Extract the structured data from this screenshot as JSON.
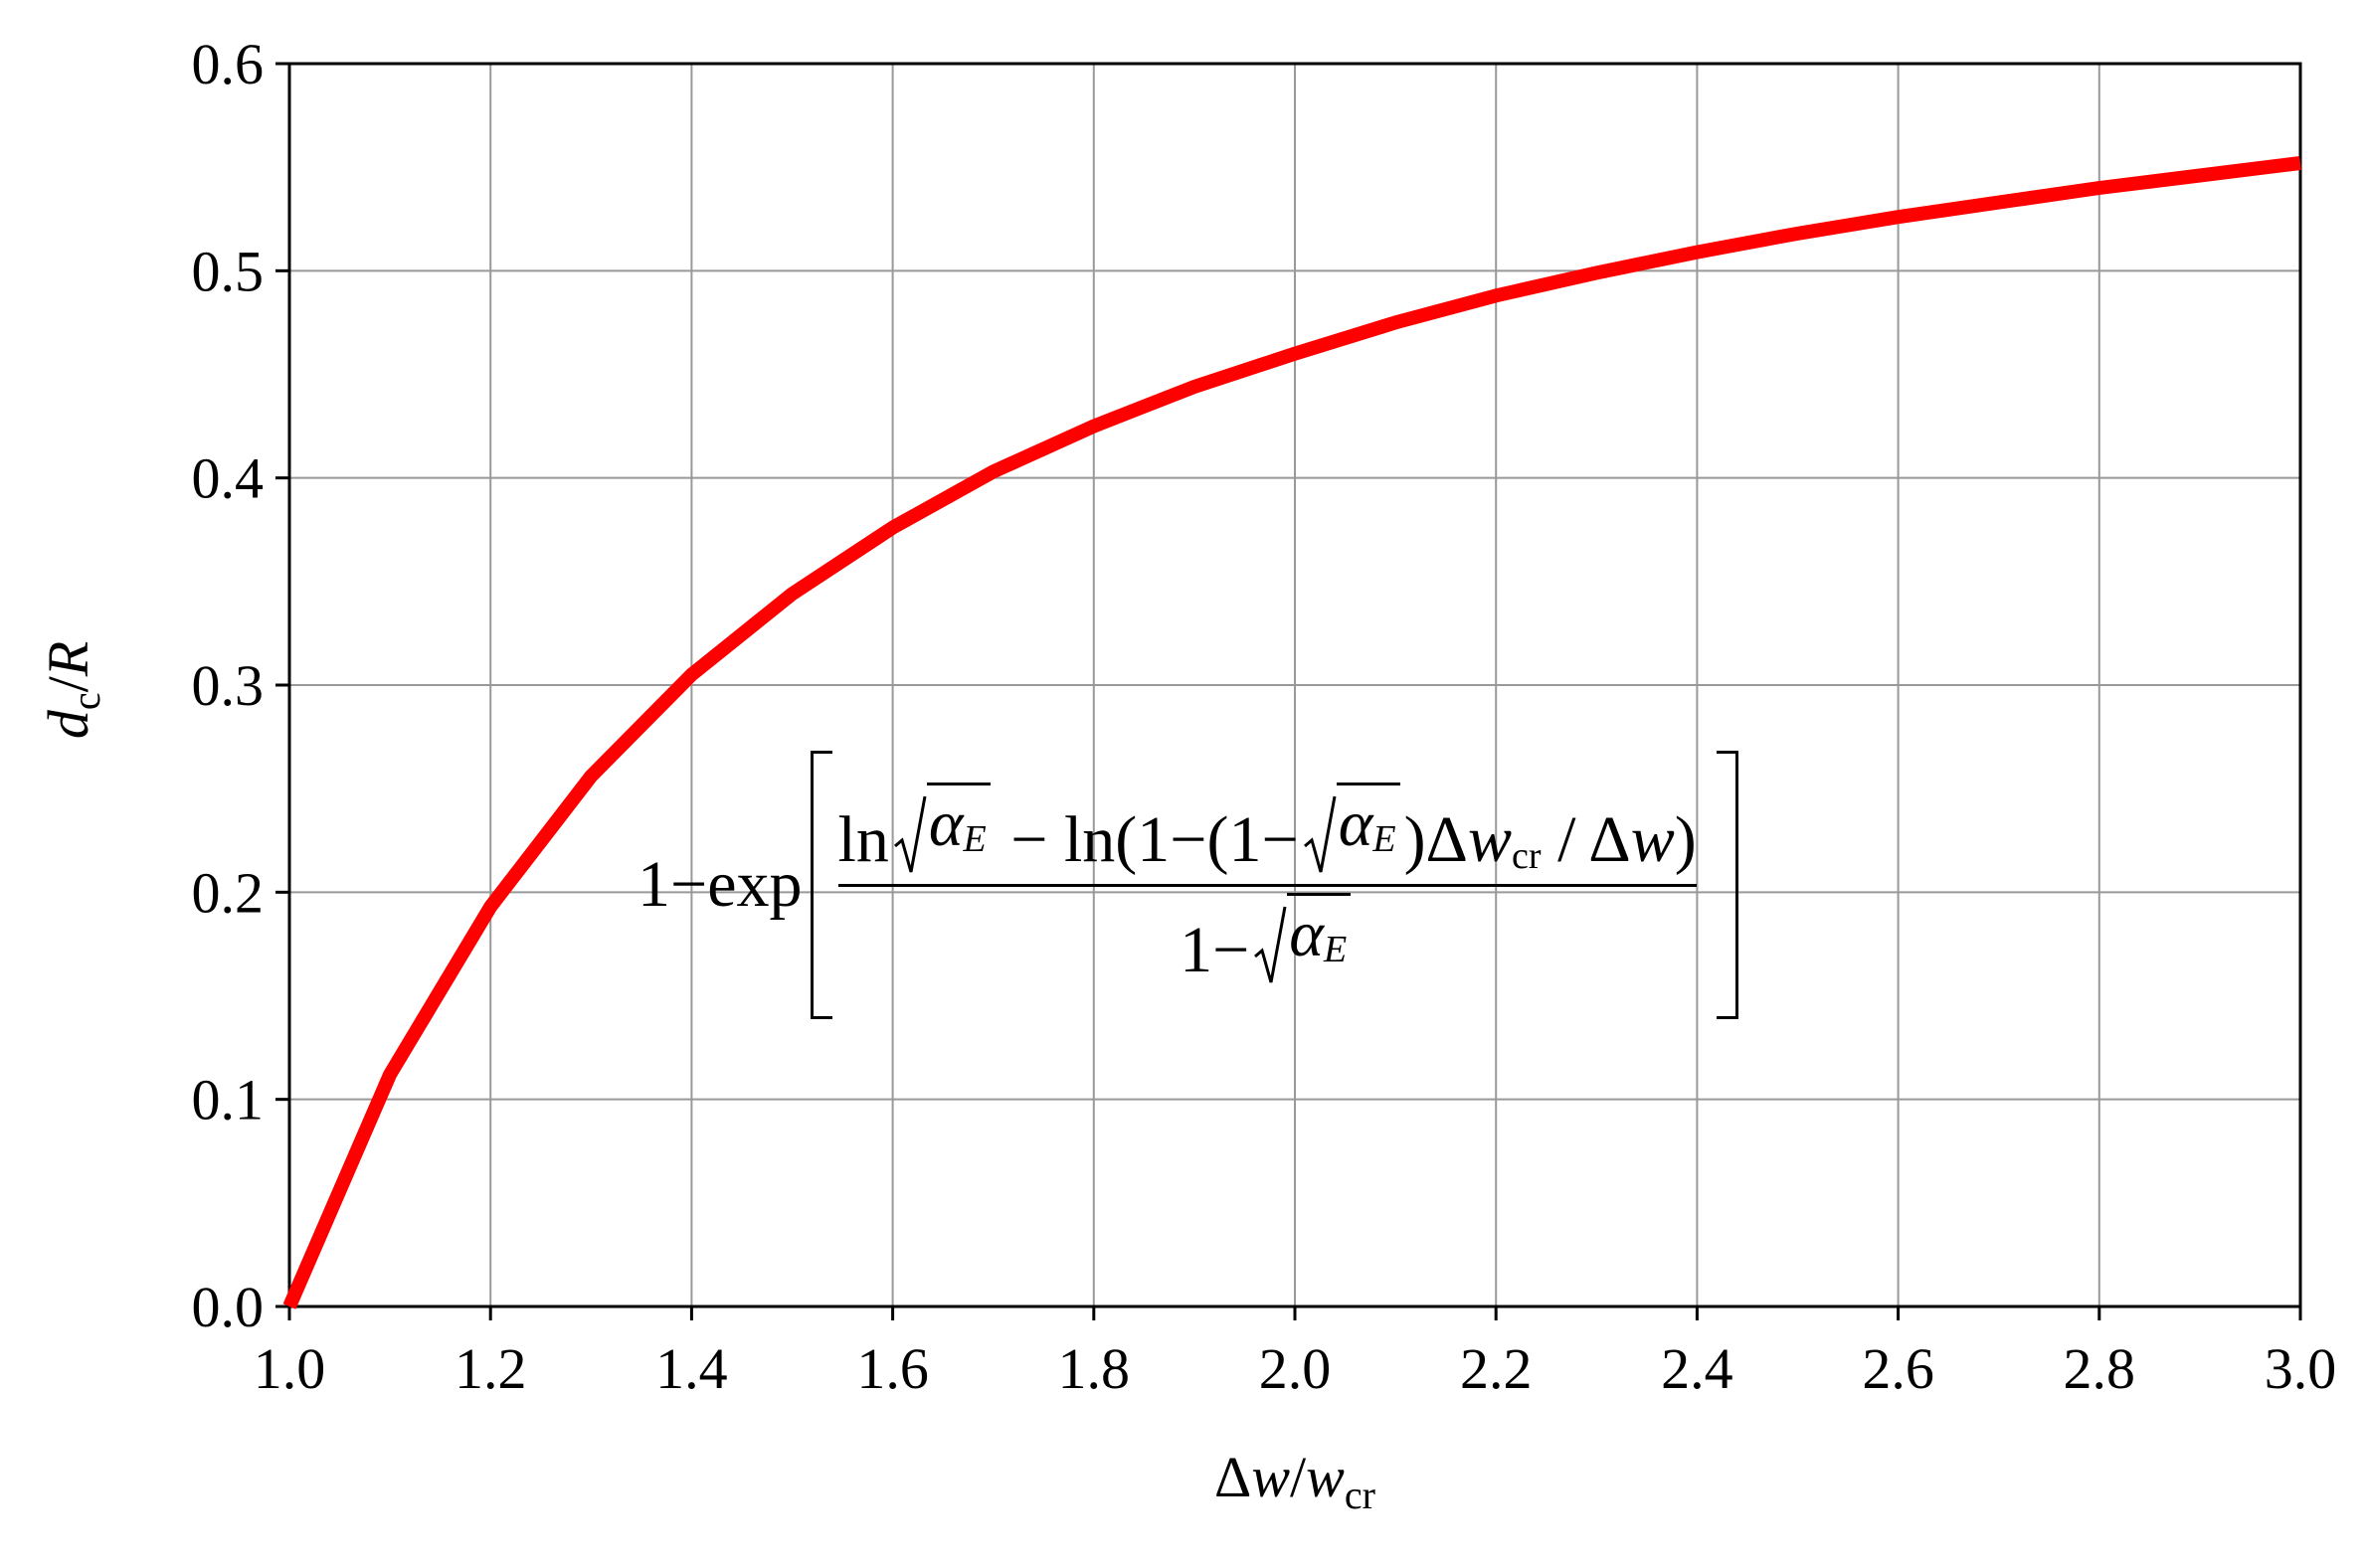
{
  "chart_data": {
    "type": "line",
    "x_label": [
      "Δ",
      "w",
      "/",
      "w",
      "cr"
    ],
    "y_label": [
      "d",
      "c",
      "/",
      "R"
    ],
    "annotation": {
      "prefix": "1−exp",
      "numerator": [
        "ln",
        "α",
        "E",
        " − ln",
        "(1−(1−",
        "α",
        "E",
        ")Δ",
        "w",
        "cr",
        " / Δ",
        "w",
        ")"
      ],
      "denominator": [
        "1−",
        "α",
        "E"
      ]
    },
    "x": [
      1.0,
      1.1,
      1.2,
      1.3,
      1.4,
      1.5,
      1.6,
      1.7,
      1.8,
      1.9,
      2.0,
      2.1,
      2.2,
      2.3,
      2.4,
      2.5,
      2.6,
      2.7,
      2.8,
      2.9,
      3.0
    ],
    "series": [
      {
        "color": "#ff0000",
        "values": [
          0.0,
          0.112,
          0.193,
          0.256,
          0.305,
          0.344,
          0.376,
          0.403,
          0.425,
          0.444,
          0.46,
          0.475,
          0.488,
          0.499,
          0.509,
          0.518,
          0.526,
          0.533,
          0.54,
          0.546,
          0.552
        ]
      }
    ],
    "xlim": [
      1.0,
      3.0
    ],
    "xticks": [
      {
        "value": 1.0,
        "label": "1.0"
      },
      1.2,
      1.4,
      1.6,
      1.8,
      {
        "value": 2.0,
        "label": "2.0"
      },
      2.2,
      2.4,
      2.6,
      2.8,
      {
        "value": 3.0,
        "label": "3.0"
      }
    ],
    "ylim": [
      0,
      0.6
    ],
    "yticks": [
      {
        "value": 0,
        "label": "0.0"
      },
      0.1,
      0.2,
      0.3,
      0.4,
      0.5,
      0.6
    ],
    "grid": true
  }
}
